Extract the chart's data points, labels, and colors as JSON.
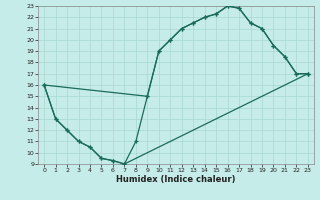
{
  "xlabel": "Humidex (Indice chaleur)",
  "bg_color": "#c5ece8",
  "line_color": "#1a6b5a",
  "grid_color": "#a8d8d0",
  "xlim": [
    -0.5,
    23.5
  ],
  "ylim": [
    9,
    23
  ],
  "xticks": [
    0,
    1,
    2,
    3,
    4,
    5,
    6,
    7,
    8,
    9,
    10,
    11,
    12,
    13,
    14,
    15,
    16,
    17,
    18,
    19,
    20,
    21,
    22,
    23
  ],
  "yticks": [
    9,
    10,
    11,
    12,
    13,
    14,
    15,
    16,
    17,
    18,
    19,
    20,
    21,
    22,
    23
  ],
  "line1_x": [
    0,
    1,
    2,
    3,
    4,
    5,
    6,
    7,
    8,
    9,
    10,
    11,
    12,
    13,
    14,
    15,
    16,
    17,
    18,
    19,
    20,
    21,
    22,
    23
  ],
  "line1_y": [
    16,
    13,
    12,
    11,
    10.5,
    9.5,
    9.3,
    9.0,
    11,
    15,
    19,
    20,
    21,
    21.5,
    22,
    22.3,
    23,
    22.8,
    21.5,
    21,
    19.5,
    18.5,
    17,
    17
  ],
  "line2_x": [
    0,
    1,
    2,
    3,
    4,
    5,
    6,
    7,
    23
  ],
  "line2_y": [
    16,
    13,
    12,
    11,
    10.5,
    9.5,
    9.3,
    9.0,
    17
  ],
  "line3_x": [
    0,
    9,
    10,
    11,
    12,
    13,
    14,
    15,
    16,
    17,
    18,
    19,
    20,
    21,
    22,
    23
  ],
  "line3_y": [
    16,
    15,
    19,
    20,
    21,
    21.5,
    22,
    22.3,
    23,
    22.8,
    21.5,
    21,
    19.5,
    18.5,
    17,
    17
  ],
  "marker": "+",
  "markersize": 3.5,
  "linewidth": 0.9,
  "tick_fontsize": 4.5,
  "xlabel_fontsize": 6.0
}
